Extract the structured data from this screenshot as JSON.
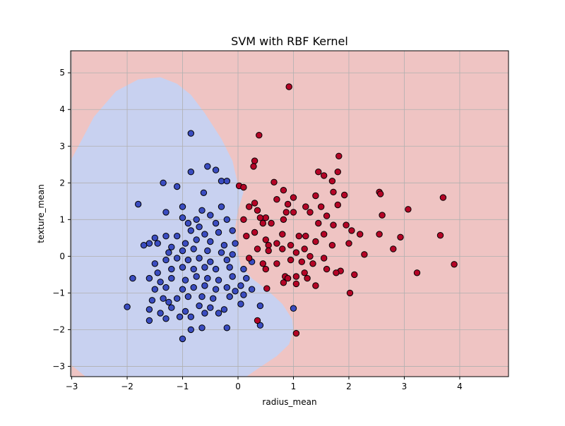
{
  "chart_data": {
    "type": "scatter",
    "title": "SVM with RBF Kernel",
    "xlabel": "radius_mean",
    "ylabel": "texture_mean",
    "xlim": [
      -3.02,
      4.88
    ],
    "ylim": [
      -3.28,
      5.6
    ],
    "xticks": [
      -3,
      -2,
      -1,
      0,
      1,
      2,
      3,
      4
    ],
    "yticks": [
      -3,
      -2,
      -1,
      0,
      1,
      2,
      3,
      4,
      5
    ],
    "grid": true,
    "legend": "none",
    "colors": {
      "class_0_point": "#3a4cc0",
      "class_1_point": "#b40426",
      "class_0_region": "#c8d1f0",
      "class_1_region": "#efc4c3",
      "point_edge": "#000000",
      "grid": "#b0b0b0"
    },
    "decision_regions": [
      {
        "class": 0,
        "boundary": [
          [
            -3.02,
            2.6
          ],
          [
            -2.6,
            3.8
          ],
          [
            -2.2,
            4.5
          ],
          [
            -1.8,
            4.82
          ],
          [
            -1.4,
            4.88
          ],
          [
            -1.1,
            4.7
          ],
          [
            -0.85,
            4.4
          ],
          [
            -0.6,
            3.9
          ],
          [
            -0.3,
            3.2
          ],
          [
            -0.1,
            2.6
          ],
          [
            0.0,
            1.95
          ],
          [
            0.1,
            1.75
          ],
          [
            0.0,
            1.25
          ],
          [
            -0.05,
            0.8
          ],
          [
            -0.02,
            0.2
          ],
          [
            0.05,
            -0.25
          ],
          [
            0.25,
            -0.6
          ],
          [
            0.55,
            -0.95
          ],
          [
            0.8,
            -1.3
          ],
          [
            0.98,
            -1.72
          ],
          [
            1.0,
            -2.05
          ],
          [
            0.92,
            -2.4
          ],
          [
            0.7,
            -2.72
          ],
          [
            0.4,
            -3.02
          ],
          [
            0.15,
            -3.28
          ],
          [
            -2.75,
            -3.28
          ],
          [
            -3.02,
            -2.95
          ]
        ]
      }
    ],
    "series": [
      {
        "class": 0,
        "points": [
          [
            -0.85,
            3.35
          ],
          [
            -0.55,
            2.45
          ],
          [
            -0.85,
            2.3
          ],
          [
            -0.4,
            2.35
          ],
          [
            -0.3,
            2.05
          ],
          [
            -0.2,
            2.05
          ],
          [
            -1.35,
            2.0
          ],
          [
            -1.1,
            1.9
          ],
          [
            -1.8,
            1.42
          ],
          [
            -0.62,
            1.73
          ],
          [
            -1.0,
            1.35
          ],
          [
            -0.65,
            1.25
          ],
          [
            -0.3,
            1.35
          ],
          [
            -0.5,
            1.12
          ],
          [
            -1.3,
            1.2
          ],
          [
            -1.0,
            1.05
          ],
          [
            -0.75,
            1.0
          ],
          [
            -0.4,
            0.9
          ],
          [
            -0.9,
            0.9
          ],
          [
            -0.2,
            1.0
          ],
          [
            -1.5,
            0.5
          ],
          [
            -1.3,
            0.55
          ],
          [
            -1.1,
            0.55
          ],
          [
            -0.85,
            0.7
          ],
          [
            -0.7,
            0.8
          ],
          [
            -0.6,
            0.6
          ],
          [
            -0.35,
            0.65
          ],
          [
            -0.1,
            0.7
          ],
          [
            -1.6,
            0.35
          ],
          [
            -1.7,
            0.3
          ],
          [
            -1.45,
            0.35
          ],
          [
            -1.2,
            0.25
          ],
          [
            -0.95,
            0.35
          ],
          [
            -0.75,
            0.45
          ],
          [
            -0.5,
            0.4
          ],
          [
            -0.25,
            0.3
          ],
          [
            -0.05,
            0.35
          ],
          [
            -1.25,
            0.1
          ],
          [
            -1.0,
            0.15
          ],
          [
            -0.8,
            0.2
          ],
          [
            -0.55,
            0.15
          ],
          [
            -0.3,
            0.1
          ],
          [
            -0.1,
            0.05
          ],
          [
            -1.5,
            -0.2
          ],
          [
            -1.3,
            -0.1
          ],
          [
            -1.1,
            -0.05
          ],
          [
            -0.9,
            -0.1
          ],
          [
            -0.7,
            -0.05
          ],
          [
            -0.5,
            -0.15
          ],
          [
            -0.2,
            -0.1
          ],
          [
            -1.45,
            -0.45
          ],
          [
            -1.2,
            -0.35
          ],
          [
            -1.0,
            -0.3
          ],
          [
            -0.8,
            -0.35
          ],
          [
            -0.6,
            -0.3
          ],
          [
            -0.4,
            -0.35
          ],
          [
            -0.15,
            -0.3
          ],
          [
            0.1,
            -0.35
          ],
          [
            -1.6,
            -0.6
          ],
          [
            -1.4,
            -0.7
          ],
          [
            -1.2,
            -0.6
          ],
          [
            -0.95,
            -0.65
          ],
          [
            -0.75,
            -0.55
          ],
          [
            -0.55,
            -0.6
          ],
          [
            -0.35,
            -0.65
          ],
          [
            -0.1,
            -0.55
          ],
          [
            0.15,
            -0.6
          ],
          [
            -1.5,
            -0.9
          ],
          [
            -1.3,
            -0.85
          ],
          [
            -1.0,
            -0.9
          ],
          [
            -0.8,
            -0.85
          ],
          [
            -0.6,
            -0.8
          ],
          [
            -0.4,
            -0.9
          ],
          [
            -0.2,
            -0.85
          ],
          [
            0.05,
            -0.8
          ],
          [
            0.25,
            -0.9
          ],
          [
            -1.55,
            -1.2
          ],
          [
            -1.35,
            -1.15
          ],
          [
            -1.1,
            -1.15
          ],
          [
            -0.9,
            -1.1
          ],
          [
            -0.65,
            -1.1
          ],
          [
            -0.45,
            -1.15
          ],
          [
            -0.15,
            -1.1
          ],
          [
            0.05,
            -1.3
          ],
          [
            0.4,
            -1.35
          ],
          [
            -1.6,
            -1.45
          ],
          [
            -1.4,
            -1.55
          ],
          [
            -1.2,
            -1.4
          ],
          [
            -0.95,
            -1.5
          ],
          [
            -0.7,
            -1.35
          ],
          [
            -0.5,
            -1.4
          ],
          [
            -0.25,
            -1.45
          ],
          [
            -1.6,
            -1.75
          ],
          [
            -1.3,
            -1.7
          ],
          [
            -1.05,
            -1.65
          ],
          [
            -0.85,
            -1.65
          ],
          [
            -0.6,
            -1.55
          ],
          [
            -0.35,
            -1.55
          ],
          [
            -0.65,
            -1.95
          ],
          [
            -0.85,
            -2.0
          ],
          [
            -0.2,
            -1.95
          ],
          [
            -1.0,
            -2.25
          ],
          [
            -2.0,
            -1.38
          ],
          [
            -1.9,
            -0.6
          ],
          [
            -1.25,
            -1.25
          ],
          [
            0.4,
            -1.88
          ],
          [
            1.0,
            -1.42
          ],
          [
            0.25,
            -0.15
          ],
          [
            -0.05,
            -0.95
          ],
          [
            0.1,
            -1.05
          ]
        ]
      },
      {
        "class": 1,
        "points": [
          [
            0.92,
            4.62
          ],
          [
            0.38,
            3.3
          ],
          [
            1.82,
            2.73
          ],
          [
            0.3,
            2.6
          ],
          [
            0.28,
            2.45
          ],
          [
            1.45,
            2.3
          ],
          [
            1.8,
            2.3
          ],
          [
            1.55,
            2.2
          ],
          [
            1.7,
            2.05
          ],
          [
            0.65,
            2.02
          ],
          [
            0.02,
            1.92
          ],
          [
            0.1,
            1.88
          ],
          [
            0.82,
            1.8
          ],
          [
            1.72,
            1.75
          ],
          [
            2.55,
            1.75
          ],
          [
            2.57,
            1.7
          ],
          [
            1.92,
            1.67
          ],
          [
            3.7,
            1.6
          ],
          [
            1.4,
            1.65
          ],
          [
            0.7,
            1.55
          ],
          [
            1.0,
            1.6
          ],
          [
            1.22,
            1.35
          ],
          [
            1.5,
            1.35
          ],
          [
            1.8,
            1.4
          ],
          [
            0.9,
            1.42
          ],
          [
            0.3,
            1.45
          ],
          [
            0.2,
            1.35
          ],
          [
            0.35,
            1.25
          ],
          [
            2.6,
            1.12
          ],
          [
            3.07,
            1.28
          ],
          [
            0.87,
            1.2
          ],
          [
            0.5,
            1.05
          ],
          [
            0.4,
            1.05
          ],
          [
            1.0,
            1.2
          ],
          [
            1.3,
            1.2
          ],
          [
            1.6,
            1.1
          ],
          [
            0.1,
            1.0
          ],
          [
            0.6,
            0.9
          ],
          [
            0.82,
            1.0
          ],
          [
            1.45,
            0.9
          ],
          [
            1.72,
            0.85
          ],
          [
            1.95,
            0.85
          ],
          [
            0.45,
            0.9
          ],
          [
            1.1,
            0.55
          ],
          [
            1.22,
            0.55
          ],
          [
            0.8,
            0.6
          ],
          [
            0.5,
            0.45
          ],
          [
            0.3,
            0.65
          ],
          [
            0.15,
            0.55
          ],
          [
            1.55,
            0.6
          ],
          [
            2.05,
            0.7
          ],
          [
            2.2,
            0.6
          ],
          [
            2.55,
            0.6
          ],
          [
            2.93,
            0.52
          ],
          [
            3.65,
            0.57
          ],
          [
            0.55,
            0.3
          ],
          [
            0.7,
            0.35
          ],
          [
            0.95,
            0.3
          ],
          [
            1.2,
            0.2
          ],
          [
            1.4,
            0.4
          ],
          [
            1.7,
            0.3
          ],
          [
            2.0,
            0.35
          ],
          [
            2.8,
            0.2
          ],
          [
            2.28,
            0.05
          ],
          [
            0.35,
            0.2
          ],
          [
            0.55,
            0.15
          ],
          [
            0.8,
            0.2
          ],
          [
            1.05,
            0.1
          ],
          [
            1.3,
            0.0
          ],
          [
            1.55,
            -0.05
          ],
          [
            0.2,
            -0.05
          ],
          [
            0.45,
            -0.2
          ],
          [
            0.7,
            -0.2
          ],
          [
            0.95,
            -0.1
          ],
          [
            1.15,
            -0.15
          ],
          [
            1.35,
            -0.2
          ],
          [
            1.6,
            -0.35
          ],
          [
            0.5,
            -0.35
          ],
          [
            0.85,
            -0.55
          ],
          [
            1.2,
            -0.45
          ],
          [
            1.05,
            -0.55
          ],
          [
            1.85,
            -0.4
          ],
          [
            1.77,
            -0.45
          ],
          [
            2.1,
            -0.5
          ],
          [
            3.23,
            -0.45
          ],
          [
            3.9,
            -0.22
          ],
          [
            0.82,
            -0.72
          ],
          [
            1.05,
            -0.75
          ],
          [
            1.4,
            -0.8
          ],
          [
            1.25,
            -0.6
          ],
          [
            2.02,
            -1.0
          ],
          [
            1.05,
            -2.1
          ],
          [
            0.35,
            -1.75
          ],
          [
            0.9,
            -0.6
          ],
          [
            0.52,
            -0.88
          ]
        ]
      }
    ]
  }
}
